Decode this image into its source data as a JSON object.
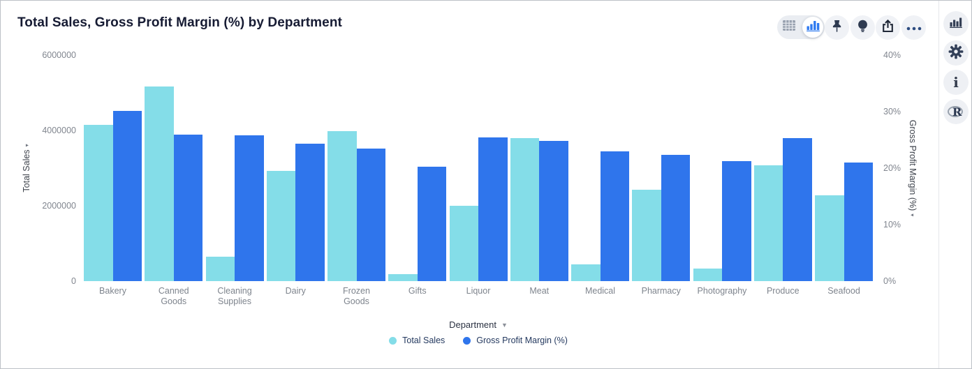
{
  "title": "Total Sales, Gross Profit Margin (%) by Department",
  "toolbar": {
    "icons": [
      "table-view-icon",
      "chart-view-icon",
      "pushpin-icon",
      "lightbulb-icon",
      "share-icon",
      "ellipsis-icon"
    ],
    "selected_view": "chart-view"
  },
  "right_rail": {
    "icons": [
      "bar-chart-icon",
      "gear-icon",
      "info-icon",
      "r-logo-icon"
    ]
  },
  "colors": {
    "total_sales_bar": "#84DDE8",
    "gross_profit_margin_bar": "#2F75EC",
    "accent_blue": "#2F7AF0",
    "icon_dark": "#2E3A50"
  },
  "chart_data": {
    "type": "bar",
    "title": "Total Sales, Gross Profit Margin (%) by Department",
    "categories": [
      "Bakery",
      "Canned Goods",
      "Cleaning Supplies",
      "Dairy",
      "Frozen Goods",
      "Gifts",
      "Liquor",
      "Meat",
      "Medical",
      "Pharmacy",
      "Photography",
      "Produce",
      "Seafood"
    ],
    "series": [
      {
        "name": "Total Sales",
        "axis": "left",
        "color": "#84DDE8",
        "values": [
          4150000,
          5160000,
          650000,
          2930000,
          3980000,
          180000,
          2000000,
          3800000,
          440000,
          2430000,
          340000,
          3080000,
          2280000
        ]
      },
      {
        "name": "Gross Profit Margin (%)",
        "axis": "right",
        "color": "#2F75EC",
        "values": [
          30.1,
          25.9,
          25.8,
          24.3,
          23.5,
          20.2,
          25.4,
          24.8,
          23.0,
          22.3,
          21.2,
          25.3,
          21.0
        ]
      }
    ],
    "left_axis": {
      "title": "Total Sales",
      "max": 6000000,
      "min": 0,
      "ticks": [
        "6000000",
        "4000000",
        "2000000",
        "0"
      ]
    },
    "right_axis": {
      "title": "Gross Profit Margin (%)",
      "max": 40,
      "min": 0,
      "ticks": [
        "40%",
        "30%",
        "20%",
        "10%",
        "0%"
      ]
    },
    "xlabel": "Department",
    "grid": false,
    "legend_position": "bottom"
  }
}
